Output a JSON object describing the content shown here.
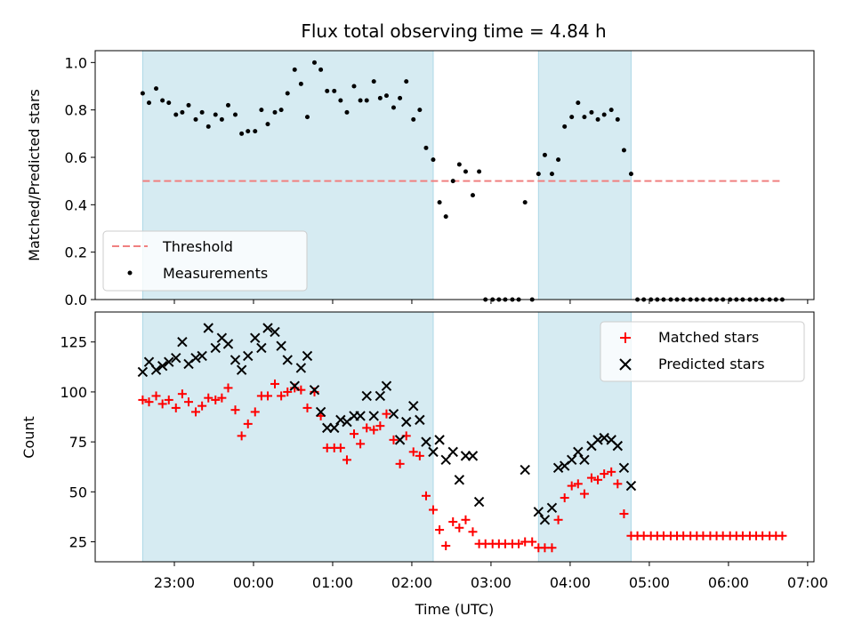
{
  "colors": {
    "shade": "#add8e6",
    "threshold": "#f08080",
    "measurements": "#000000",
    "matched": "#ff0000",
    "predicted": "#000000"
  },
  "chart_data": [
    {
      "type": "scatter",
      "title": "Flux total observing time = 4.84 h",
      "xlabel": "",
      "ylabel": "Matched/Predicted stars",
      "ylim": [
        0,
        1.05
      ],
      "yticks": [
        "0.0",
        "0.2",
        "0.4",
        "0.6",
        "0.8",
        "1.0"
      ],
      "grid": false,
      "legend_position": "lower-left",
      "shaded_intervals_hours": [
        [
          22.6,
          26.27
        ],
        [
          27.6,
          28.77
        ]
      ],
      "threshold": {
        "name": "Threshold",
        "y": 0.5,
        "x_range_hours": [
          22.6,
          30.67
        ],
        "style": "dashed"
      },
      "measurements": {
        "name": "Measurements",
        "x_hours": [
          22.6,
          22.68,
          22.77,
          22.85,
          22.93,
          23.02,
          23.1,
          23.18,
          23.27,
          23.35,
          23.43,
          23.52,
          23.6,
          23.68,
          23.77,
          23.85,
          23.93,
          24.02,
          24.1,
          24.18,
          24.27,
          24.35,
          24.43,
          24.52,
          24.6,
          24.68,
          24.77,
          24.85,
          24.93,
          25.02,
          25.1,
          25.18,
          25.27,
          25.35,
          25.43,
          25.52,
          25.6,
          25.68,
          25.77,
          25.85,
          25.93,
          26.02,
          26.1,
          26.18,
          26.27,
          26.35,
          26.43,
          26.52,
          26.6,
          26.68,
          26.77,
          26.85,
          26.93,
          27.02,
          27.1,
          27.18,
          27.27,
          27.35,
          27.43,
          27.52,
          27.6,
          27.68,
          27.77,
          27.85,
          27.93,
          28.02,
          28.1,
          28.18,
          28.27,
          28.35,
          28.43,
          28.52,
          28.6,
          28.68,
          28.77,
          28.85,
          28.93,
          29.02,
          29.1,
          29.18,
          29.27,
          29.35,
          29.43,
          29.52,
          29.6,
          29.68,
          29.77,
          29.85,
          29.93,
          30.02,
          30.1,
          30.18,
          30.27,
          30.35,
          30.43,
          30.52,
          30.6,
          30.68
        ],
        "y": [
          0.87,
          0.83,
          0.89,
          0.84,
          0.83,
          0.78,
          0.79,
          0.82,
          0.76,
          0.79,
          0.73,
          0.78,
          0.76,
          0.82,
          0.78,
          0.7,
          0.71,
          0.71,
          0.8,
          0.74,
          0.79,
          0.8,
          0.87,
          0.97,
          0.91,
          0.77,
          1.0,
          0.97,
          0.88,
          0.88,
          0.84,
          0.79,
          0.9,
          0.84,
          0.84,
          0.92,
          0.85,
          0.86,
          0.81,
          0.85,
          0.92,
          0.76,
          0.8,
          0.64,
          0.59,
          0.41,
          0.35,
          0.5,
          0.57,
          0.54,
          0.44,
          0.54,
          0.0,
          0.0,
          0.0,
          0.0,
          0.0,
          0.0,
          0.41,
          0.0,
          0.53,
          0.61,
          0.53,
          0.59,
          0.73,
          0.77,
          0.83,
          0.77,
          0.79,
          0.76,
          0.78,
          0.8,
          0.76,
          0.63,
          0.53,
          0.0,
          0.0,
          0.0,
          0.0,
          0.0,
          0.0,
          0.0,
          0.0,
          0.0,
          0.0,
          0.0,
          0.0,
          0.0,
          0.0,
          0.0,
          0.0,
          0.0,
          0.0,
          0.0,
          0.0,
          0.0,
          0.0,
          0.0
        ]
      }
    },
    {
      "type": "scatter",
      "title": "",
      "xlabel": "Time (UTC)",
      "ylabel": "Count",
      "ylim": [
        15,
        140
      ],
      "yticks": [
        "25",
        "50",
        "75",
        "100",
        "125"
      ],
      "xticks": [
        "23:00",
        "00:00",
        "01:00",
        "02:00",
        "03:00",
        "04:00",
        "05:00",
        "06:00",
        "07:00"
      ],
      "grid": false,
      "legend_position": "upper-right",
      "shaded_intervals_hours": [
        [
          22.6,
          26.27
        ],
        [
          27.6,
          28.77
        ]
      ],
      "series": [
        {
          "name": "Matched stars",
          "marker": "plus",
          "x_hours": [
            22.6,
            22.68,
            22.77,
            22.85,
            22.93,
            23.02,
            23.1,
            23.18,
            23.27,
            23.35,
            23.43,
            23.52,
            23.6,
            23.68,
            23.77,
            23.85,
            23.93,
            24.02,
            24.1,
            24.18,
            24.27,
            24.35,
            24.43,
            24.52,
            24.6,
            24.68,
            24.77,
            24.85,
            24.93,
            25.02,
            25.1,
            25.18,
            25.27,
            25.35,
            25.43,
            25.52,
            25.6,
            25.68,
            25.77,
            25.85,
            25.93,
            26.02,
            26.1,
            26.18,
            26.27,
            26.35,
            26.43,
            26.52,
            26.6,
            26.68,
            26.77,
            26.85,
            26.93,
            27.02,
            27.1,
            27.18,
            27.27,
            27.35,
            27.43,
            27.52,
            27.6,
            27.68,
            27.77,
            27.85,
            27.93,
            28.02,
            28.1,
            28.18,
            28.27,
            28.35,
            28.43,
            28.52,
            28.6,
            28.68,
            28.77,
            28.85,
            28.93,
            29.02,
            29.1,
            29.18,
            29.27,
            29.35,
            29.43,
            29.52,
            29.6,
            29.68,
            29.77,
            29.85,
            29.93,
            30.02,
            30.1,
            30.18,
            30.27,
            30.35,
            30.43,
            30.52,
            30.6,
            30.68
          ],
          "y": [
            96,
            95,
            98,
            94,
            96,
            92,
            99,
            95,
            90,
            93,
            97,
            96,
            97,
            102,
            91,
            78,
            84,
            90,
            98,
            98,
            104,
            98,
            100,
            102,
            101,
            92,
            100,
            88,
            72,
            72,
            72,
            66,
            79,
            74,
            82,
            81,
            83,
            89,
            76,
            64,
            78,
            70,
            68,
            48,
            41,
            31,
            23,
            35,
            32,
            36,
            30,
            24,
            24,
            24,
            24,
            24,
            24,
            24,
            25,
            25,
            22,
            22,
            22,
            36,
            47,
            53,
            54,
            49,
            57,
            56,
            59,
            60,
            54,
            39,
            28,
            28,
            28,
            28,
            28,
            28,
            28,
            28,
            28,
            28,
            28,
            28,
            28,
            28,
            28,
            28,
            28,
            28,
            28,
            28,
            28,
            28,
            28,
            28
          ]
        },
        {
          "name": "Predicted stars",
          "marker": "x",
          "x_hours": [
            22.6,
            22.68,
            22.77,
            22.85,
            22.93,
            23.02,
            23.1,
            23.18,
            23.27,
            23.35,
            23.43,
            23.52,
            23.6,
            23.68,
            23.77,
            23.85,
            23.93,
            24.02,
            24.1,
            24.18,
            24.27,
            24.35,
            24.43,
            24.52,
            24.6,
            24.68,
            24.77,
            24.85,
            24.93,
            25.02,
            25.1,
            25.18,
            25.27,
            25.35,
            25.43,
            25.52,
            25.6,
            25.68,
            25.77,
            25.85,
            25.93,
            26.02,
            26.1,
            26.18,
            26.27,
            26.35,
            26.43,
            26.52,
            26.6,
            26.68,
            26.77,
            26.85,
            27.43,
            27.6,
            27.68,
            27.77,
            27.85,
            27.93,
            28.02,
            28.1,
            28.18,
            28.27,
            28.35,
            28.43,
            28.52,
            28.6,
            28.68,
            28.77
          ],
          "y": [
            110,
            115,
            111,
            113,
            115,
            117,
            125,
            114,
            117,
            118,
            132,
            122,
            127,
            124,
            116,
            111,
            118,
            127,
            122,
            132,
            130,
            123,
            116,
            103,
            112,
            118,
            101,
            90,
            82,
            82,
            86,
            85,
            88,
            88,
            98,
            88,
            98,
            103,
            89,
            76,
            85,
            93,
            86,
            75,
            70,
            76,
            66,
            70,
            56,
            68,
            68,
            45,
            61,
            40,
            36,
            42,
            62,
            63,
            66,
            70,
            66,
            73,
            76,
            77,
            76,
            73,
            62,
            53
          ]
        }
      ]
    }
  ]
}
